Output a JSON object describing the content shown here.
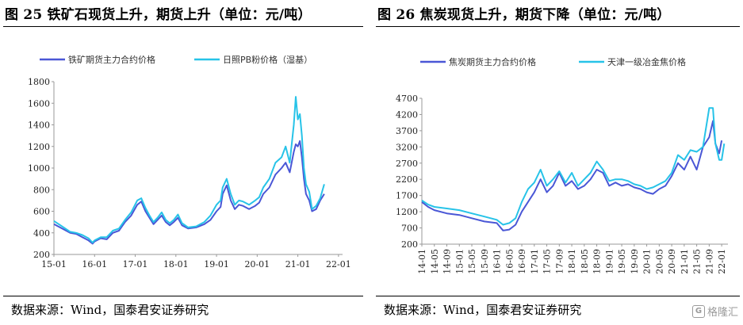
{
  "left": {
    "title": "图 25  铁矿石现货上升，期货上升（单位：元/吨）",
    "source": "数据来源：Wind，国泰君安证券研究"
  },
  "right": {
    "title": "图 26  焦炭现货上升，期货下降（单位：元/吨）",
    "source": "数据来源：Wind，国泰君安证券研究"
  },
  "watermark": {
    "icon": "gelonghui-logo-icon",
    "text": "格隆汇"
  },
  "colors": {
    "dark_series": "#4a57d6",
    "light_series": "#27c3e8",
    "axis": "#999999"
  },
  "chart_data": [
    {
      "type": "line",
      "title": "",
      "x_ticks": [
        "15-01",
        "16-01",
        "17-01",
        "18-01",
        "19-01",
        "20-01",
        "21-01",
        "22-01"
      ],
      "xlim": [
        0,
        7.1
      ],
      "ylim": [
        200,
        1800
      ],
      "y_ticks": [
        200,
        400,
        600,
        800,
        1000,
        1200,
        1400,
        1600,
        1800
      ],
      "legend_position": "top",
      "series": [
        {
          "name": "铁矿期货主力合约价格",
          "color": "#4a57d6",
          "points": [
            [
              0,
              480
            ],
            [
              0.2,
              440
            ],
            [
              0.4,
              400
            ],
            [
              0.55,
              390
            ],
            [
              0.7,
              360
            ],
            [
              0.85,
              330
            ],
            [
              0.95,
              300
            ],
            [
              1.0,
              320
            ],
            [
              1.15,
              350
            ],
            [
              1.3,
              340
            ],
            [
              1.45,
              400
            ],
            [
              1.6,
              420
            ],
            [
              1.75,
              500
            ],
            [
              1.9,
              560
            ],
            [
              2.05,
              660
            ],
            [
              2.15,
              690
            ],
            [
              2.25,
              600
            ],
            [
              2.35,
              540
            ],
            [
              2.45,
              480
            ],
            [
              2.55,
              520
            ],
            [
              2.65,
              560
            ],
            [
              2.75,
              500
            ],
            [
              2.85,
              470
            ],
            [
              2.95,
              500
            ],
            [
              3.05,
              540
            ],
            [
              3.15,
              470
            ],
            [
              3.3,
              440
            ],
            [
              3.5,
              450
            ],
            [
              3.7,
              480
            ],
            [
              3.85,
              520
            ],
            [
              4.0,
              600
            ],
            [
              4.1,
              640
            ],
            [
              4.15,
              760
            ],
            [
              4.25,
              840
            ],
            [
              4.35,
              700
            ],
            [
              4.45,
              620
            ],
            [
              4.55,
              660
            ],
            [
              4.65,
              650
            ],
            [
              4.8,
              620
            ],
            [
              4.95,
              650
            ],
            [
              5.05,
              680
            ],
            [
              5.15,
              760
            ],
            [
              5.3,
              820
            ],
            [
              5.45,
              940
            ],
            [
              5.6,
              1000
            ],
            [
              5.7,
              1050
            ],
            [
              5.8,
              960
            ],
            [
              5.9,
              1150
            ],
            [
              5.95,
              1220
            ],
            [
              6.0,
              1200
            ],
            [
              6.05,
              1250
            ],
            [
              6.1,
              1100
            ],
            [
              6.15,
              900
            ],
            [
              6.2,
              760
            ],
            [
              6.28,
              700
            ],
            [
              6.35,
              600
            ],
            [
              6.45,
              620
            ],
            [
              6.55,
              700
            ],
            [
              6.65,
              760
            ]
          ]
        },
        {
          "name": "日照PB粉价格（湿基）",
          "color": "#27c3e8",
          "points": [
            [
              0,
              510
            ],
            [
              0.2,
              460
            ],
            [
              0.4,
              410
            ],
            [
              0.55,
              400
            ],
            [
              0.7,
              380
            ],
            [
              0.85,
              350
            ],
            [
              0.95,
              310
            ],
            [
              1.0,
              330
            ],
            [
              1.15,
              360
            ],
            [
              1.3,
              360
            ],
            [
              1.45,
              420
            ],
            [
              1.6,
              440
            ],
            [
              1.75,
              520
            ],
            [
              1.9,
              590
            ],
            [
              2.05,
              700
            ],
            [
              2.15,
              720
            ],
            [
              2.25,
              630
            ],
            [
              2.35,
              560
            ],
            [
              2.45,
              500
            ],
            [
              2.55,
              540
            ],
            [
              2.65,
              590
            ],
            [
              2.75,
              520
            ],
            [
              2.85,
              490
            ],
            [
              2.95,
              520
            ],
            [
              3.05,
              570
            ],
            [
              3.15,
              490
            ],
            [
              3.3,
              450
            ],
            [
              3.5,
              460
            ],
            [
              3.7,
              500
            ],
            [
              3.85,
              560
            ],
            [
              4.0,
              660
            ],
            [
              4.1,
              700
            ],
            [
              4.15,
              820
            ],
            [
              4.25,
              900
            ],
            [
              4.35,
              760
            ],
            [
              4.45,
              660
            ],
            [
              4.55,
              700
            ],
            [
              4.65,
              690
            ],
            [
              4.8,
              660
            ],
            [
              4.95,
              700
            ],
            [
              5.05,
              730
            ],
            [
              5.15,
              820
            ],
            [
              5.3,
              900
            ],
            [
              5.45,
              1050
            ],
            [
              5.6,
              1100
            ],
            [
              5.7,
              1200
            ],
            [
              5.8,
              1050
            ],
            [
              5.9,
              1400
            ],
            [
              5.95,
              1660
            ],
            [
              6.0,
              1450
            ],
            [
              6.05,
              1500
            ],
            [
              6.1,
              1300
            ],
            [
              6.15,
              1000
            ],
            [
              6.2,
              850
            ],
            [
              6.28,
              780
            ],
            [
              6.35,
              620
            ],
            [
              6.45,
              650
            ],
            [
              6.55,
              720
            ],
            [
              6.65,
              850
            ]
          ]
        }
      ]
    },
    {
      "type": "line",
      "title": "",
      "x_ticks": [
        "14-01",
        "14-05",
        "14-09",
        "15-01",
        "15-05",
        "15-09",
        "16-01",
        "16-05",
        "16-09",
        "17-01",
        "17-05",
        "17-09",
        "18-01",
        "18-05",
        "18-09",
        "19-01",
        "19-05",
        "19-09",
        "20-01",
        "20-05",
        "20-09",
        "21-01",
        "21-05",
        "21-09",
        "22-01"
      ],
      "xlim": [
        0,
        24.5
      ],
      "ylim": [
        200,
        4700
      ],
      "y_ticks": [
        200,
        700,
        1200,
        1700,
        2200,
        2700,
        3200,
        3700,
        4200,
        4700
      ],
      "legend_position": "top",
      "series": [
        {
          "name": "焦炭期货主力合约价格",
          "color": "#4a57d6",
          "points": [
            [
              0,
              1500
            ],
            [
              0.5,
              1350
            ],
            [
              1,
              1250
            ],
            [
              2,
              1150
            ],
            [
              3,
              1100
            ],
            [
              4,
              1000
            ],
            [
              5,
              900
            ],
            [
              6,
              850
            ],
            [
              6.5,
              620
            ],
            [
              7,
              650
            ],
            [
              7.5,
              800
            ],
            [
              8,
              1200
            ],
            [
              8.5,
              1500
            ],
            [
              9,
              1800
            ],
            [
              9.5,
              2200
            ],
            [
              10,
              1800
            ],
            [
              10.5,
              2000
            ],
            [
              11,
              2400
            ],
            [
              11.5,
              2000
            ],
            [
              12,
              2150
            ],
            [
              12.5,
              1900
            ],
            [
              13,
              2000
            ],
            [
              13.5,
              2200
            ],
            [
              14,
              2500
            ],
            [
              14.5,
              2400
            ],
            [
              15,
              2000
            ],
            [
              15.5,
              2100
            ],
            [
              16,
              2000
            ],
            [
              16.5,
              2050
            ],
            [
              17,
              1950
            ],
            [
              17.5,
              1900
            ],
            [
              18,
              1800
            ],
            [
              18.5,
              1750
            ],
            [
              19,
              1900
            ],
            [
              19.5,
              2000
            ],
            [
              20,
              2300
            ],
            [
              20.5,
              2700
            ],
            [
              21,
              2500
            ],
            [
              21.5,
              2900
            ],
            [
              22,
              2500
            ],
            [
              22.5,
              3200
            ],
            [
              23,
              3500
            ],
            [
              23.3,
              4000
            ],
            [
              23.5,
              3300
            ],
            [
              23.8,
              3000
            ],
            [
              24,
              3400
            ]
          ]
        },
        {
          "name": "天津一级冶金焦价格",
          "color": "#27c3e8",
          "points": [
            [
              0,
              1550
            ],
            [
              0.5,
              1420
            ],
            [
              1,
              1350
            ],
            [
              2,
              1300
            ],
            [
              3,
              1250
            ],
            [
              4,
              1150
            ],
            [
              5,
              1050
            ],
            [
              6,
              950
            ],
            [
              6.5,
              800
            ],
            [
              7,
              850
            ],
            [
              7.5,
              1000
            ],
            [
              8,
              1500
            ],
            [
              8.5,
              1900
            ],
            [
              9,
              2100
            ],
            [
              9.5,
              2500
            ],
            [
              10,
              2000
            ],
            [
              10.5,
              2200
            ],
            [
              11,
              2450
            ],
            [
              11.5,
              2100
            ],
            [
              12,
              2400
            ],
            [
              12.5,
              2000
            ],
            [
              13,
              2200
            ],
            [
              13.5,
              2400
            ],
            [
              14,
              2750
            ],
            [
              14.5,
              2500
            ],
            [
              15,
              2150
            ],
            [
              15.5,
              2200
            ],
            [
              16,
              2200
            ],
            [
              16.5,
              2150
            ],
            [
              17,
              2050
            ],
            [
              17.5,
              2000
            ],
            [
              18,
              1900
            ],
            [
              18.5,
              1950
            ],
            [
              19,
              2050
            ],
            [
              19.5,
              2150
            ],
            [
              20,
              2400
            ],
            [
              20.5,
              2950
            ],
            [
              21,
              2800
            ],
            [
              21.5,
              3100
            ],
            [
              22,
              3050
            ],
            [
              22.5,
              3200
            ],
            [
              23,
              4400
            ],
            [
              23.3,
              4400
            ],
            [
              23.5,
              3300
            ],
            [
              23.8,
              2800
            ],
            [
              24,
              2800
            ],
            [
              24.2,
              3300
            ]
          ]
        }
      ]
    }
  ]
}
